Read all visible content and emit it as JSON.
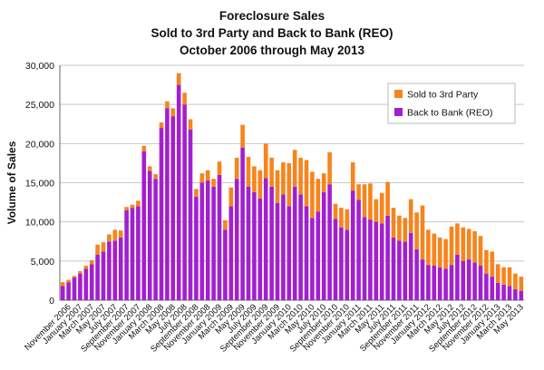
{
  "chart_data": {
    "type": "bar",
    "stacked": true,
    "title": [
      "Foreclosure Sales",
      "Sold to 3rd Party and Back to Bank (REO)",
      "October 2006 through May 2013"
    ],
    "xlabel": "",
    "ylabel": "Volume of Sales",
    "ylim": [
      0,
      30000
    ],
    "yticks": [
      0,
      5000,
      10000,
      15000,
      20000,
      25000,
      30000
    ],
    "ytick_labels": [
      "0",
      "5,000",
      "10,000",
      "15,000",
      "20,000",
      "25,000",
      "30,000"
    ],
    "grid": true,
    "legend_position": "top-right",
    "categories": [
      "Oct 2006",
      "Nov 2006",
      "Dec 2006",
      "Jan 2007",
      "Feb 2007",
      "Mar 2007",
      "Apr 2007",
      "May 2007",
      "Jun 2007",
      "Jul 2007",
      "Aug 2007",
      "Sep 2007",
      "Oct 2007",
      "Nov 2007",
      "Dec 2007",
      "Jan 2008",
      "Feb 2008",
      "Mar 2008",
      "Apr 2008",
      "May 2008",
      "Jun 2008",
      "Jul 2008",
      "Aug 2008",
      "Sep 2008",
      "Oct 2008",
      "Nov 2008",
      "Dec 2008",
      "Jan 2009",
      "Feb 2009",
      "Mar 2009",
      "Apr 2009",
      "May 2009",
      "Jun 2009",
      "Jul 2009",
      "Aug 2009",
      "Sep 2009",
      "Oct 2009",
      "Nov 2009",
      "Dec 2009",
      "Jan 2010",
      "Feb 2010",
      "Mar 2010",
      "Apr 2010",
      "May 2010",
      "Jun 2010",
      "Jul 2010",
      "Aug 2010",
      "Sep 2010",
      "Oct 2010",
      "Nov 2010",
      "Dec 2010",
      "Jan 2011",
      "Feb 2011",
      "Mar 2011",
      "Apr 2011",
      "May 2011",
      "Jun 2011",
      "Jul 2011",
      "Aug 2011",
      "Sep 2011",
      "Oct 2011",
      "Nov 2011",
      "Dec 2011",
      "Jan 2012",
      "Feb 2012",
      "Mar 2012",
      "Apr 2012",
      "May 2012",
      "Jun 2012",
      "Jul 2012",
      "Aug 2012",
      "Sep 2012",
      "Oct 2012",
      "Nov 2012",
      "Dec 2012",
      "Jan 2013",
      "Feb 2013",
      "Mar 2013",
      "Apr 2013",
      "May 2013"
    ],
    "tick_labels": [
      "November 2006",
      "January 2007",
      "March 2007",
      "May 2007",
      "July 2007",
      "September 2007",
      "November 2007",
      "January 2008",
      "March 2008",
      "May 2008",
      "July 2008",
      "September 2008",
      "November 2008",
      "January 2009",
      "March 2009",
      "May 2009",
      "July 2009",
      "September 2009",
      "November 2009",
      "January 2010",
      "March 2010",
      "May 2010",
      "July 2010",
      "September 2010",
      "November 2010",
      "January 2011",
      "March 2011",
      "May 2011",
      "July 2011",
      "September 2011",
      "November 2011",
      "January 2012",
      "March 2012",
      "May 2012",
      "July 2012",
      "September 2012",
      "November 2012",
      "January 2013",
      "March 2013",
      "May 2013"
    ],
    "series": [
      {
        "name": "Back to Bank (REO)",
        "color": "#a21fcf",
        "values": [
          1800,
          2300,
          2900,
          3400,
          4000,
          4600,
          5800,
          6200,
          7500,
          7600,
          8000,
          11500,
          11800,
          12000,
          19000,
          16500,
          15500,
          22000,
          24500,
          23500,
          27500,
          25000,
          21800,
          13200,
          15000,
          15300,
          14500,
          16000,
          9000,
          12000,
          15500,
          19500,
          14500,
          13800,
          13000,
          15600,
          14500,
          12400,
          13500,
          12000,
          14500,
          13500,
          12000,
          10500,
          11300,
          13800,
          14800,
          10400,
          9300,
          9000,
          14000,
          12800,
          10600,
          10300,
          10000,
          9800,
          10800,
          8000,
          7600,
          7500,
          8600,
          6500,
          5200,
          4500,
          4400,
          4200,
          4000,
          4500,
          5800,
          5000,
          5200,
          4800,
          4400,
          3400,
          3000,
          2200,
          2000,
          1800,
          1400,
          1200
        ]
      },
      {
        "name": "Sold to 3rd Party",
        "color": "#f7841c",
        "values": [
          500,
          300,
          200,
          300,
          400,
          500,
          1300,
          1200,
          900,
          1400,
          900,
          400,
          400,
          700,
          700,
          600,
          600,
          700,
          900,
          1000,
          1500,
          1500,
          1300,
          1000,
          1200,
          1300,
          1000,
          1700,
          1200,
          2400,
          2700,
          2900,
          3800,
          3300,
          3600,
          4400,
          3700,
          4200,
          4100,
          5500,
          4700,
          4700,
          5900,
          5900,
          4200,
          2400,
          4100,
          1900,
          2500,
          2600,
          3600,
          2000,
          4200,
          4600,
          2900,
          3900,
          4300,
          3800,
          3200,
          3000,
          4300,
          4700,
          6900,
          4500,
          4100,
          3800,
          3800,
          4900,
          4000,
          4300,
          3900,
          4000,
          3800,
          3000,
          3200,
          2400,
          2200,
          2400,
          2000,
          1800
        ]
      }
    ]
  }
}
